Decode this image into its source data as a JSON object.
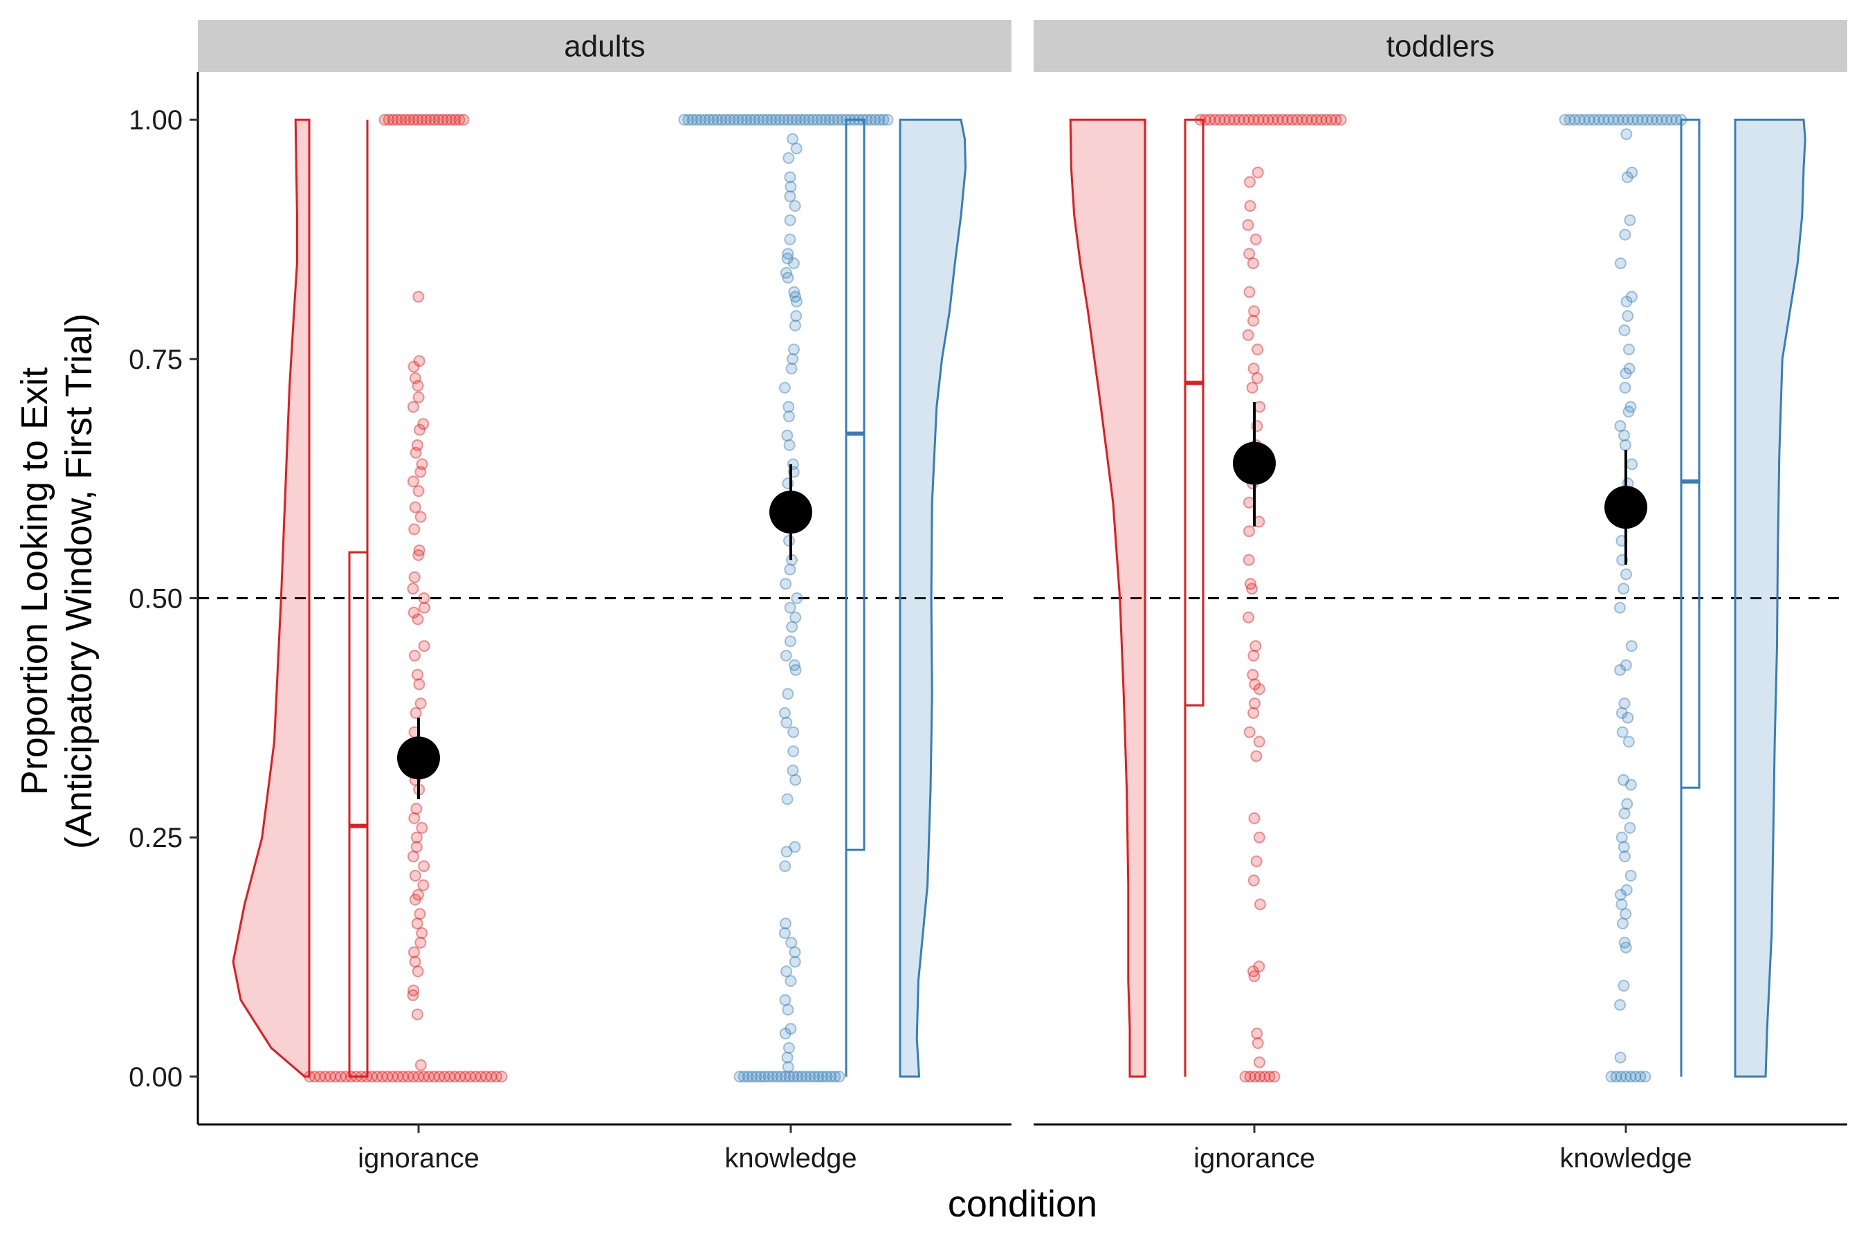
{
  "chart_data": {
    "type": "raincloud",
    "ylabel_line1": "Proportion Looking to Exit",
    "ylabel_line2": "(Anticipatory Window, First Trial)",
    "xlabel": "condition",
    "ylim": [
      -0.05,
      1.05
    ],
    "yticks": [
      0,
      0.25,
      0.5,
      0.75,
      1
    ],
    "ytick_labels": [
      "0.00",
      "0.25",
      "0.50",
      "0.75",
      "1.00"
    ],
    "reference_line": 0.5,
    "categories": [
      "ignorance",
      "knowledge"
    ],
    "colors": {
      "ignorance": "#e41a1c",
      "knowledge": "#377eb8",
      "summary": "#000000"
    },
    "panels": [
      {
        "name": "adults",
        "groups": [
          {
            "condition": "ignorance",
            "box": {
              "q1": 0.0,
              "median": 0.262,
              "q3": 0.548
            },
            "mean": 0.333,
            "ci": [
              0.29,
              0.375
            ],
            "density": [
              [
                0,
                0.06
              ],
              [
                0.03,
                0.5
              ],
              [
                0.08,
                0.9
              ],
              [
                0.12,
                1.0
              ],
              [
                0.18,
                0.85
              ],
              [
                0.25,
                0.62
              ],
              [
                0.35,
                0.46
              ],
              [
                0.5,
                0.37
              ],
              [
                0.6,
                0.32
              ],
              [
                0.72,
                0.26
              ],
              [
                0.8,
                0.2
              ],
              [
                0.85,
                0.16
              ],
              [
                0.9,
                0.16
              ],
              [
                0.95,
                0.17
              ],
              [
                1,
                0.18
              ]
            ],
            "points": [
              1,
              1,
              1,
              1,
              1,
              1,
              1,
              1,
              1,
              1,
              1,
              1,
              1,
              1,
              1,
              1,
              1,
              1,
              1,
              1,
              0.815,
              0.748,
              0.742,
              0.73,
              0.722,
              0.71,
              0.7,
              0.682,
              0.676,
              0.66,
              0.652,
              0.64,
              0.632,
              0.622,
              0.612,
              0.595,
              0.585,
              0.572,
              0.55,
              0.545,
              0.522,
              0.51,
              0.5,
              0.49,
              0.485,
              0.478,
              0.45,
              0.44,
              0.42,
              0.41,
              0.39,
              0.38,
              0.36,
              0.34,
              0.33,
              0.31,
              0.3,
              0.28,
              0.27,
              0.26,
              0.25,
              0.24,
              0.23,
              0.22,
              0.21,
              0.2,
              0.19,
              0.185,
              0.17,
              0.16,
              0.15,
              0.14,
              0.13,
              0.12,
              0.11,
              0.09,
              0.085,
              0.065,
              0.012,
              0,
              0,
              0,
              0,
              0,
              0,
              0,
              0,
              0,
              0,
              0,
              0,
              0,
              0,
              0,
              0,
              0,
              0,
              0,
              0,
              0,
              0,
              0,
              0,
              0,
              0,
              0,
              0,
              0,
              0,
              0,
              0,
              0,
              0,
              0,
              0,
              0,
              0
            ]
          },
          {
            "condition": "knowledge",
            "box": {
              "q1": 0.237,
              "median": 0.672,
              "q3": 1.0
            },
            "mean": 0.59,
            "ci": [
              0.54,
              0.64
            ],
            "density": [
              [
                0,
                0.25
              ],
              [
                0.04,
                0.22
              ],
              [
                0.1,
                0.24
              ],
              [
                0.15,
                0.3
              ],
              [
                0.2,
                0.36
              ],
              [
                0.3,
                0.4
              ],
              [
                0.4,
                0.42
              ],
              [
                0.5,
                0.41
              ],
              [
                0.6,
                0.42
              ],
              [
                0.7,
                0.48
              ],
              [
                0.75,
                0.55
              ],
              [
                0.8,
                0.65
              ],
              [
                0.85,
                0.72
              ],
              [
                0.9,
                0.8
              ],
              [
                0.95,
                0.86
              ],
              [
                0.98,
                0.85
              ],
              [
                1,
                0.8
              ]
            ],
            "points": [
              1,
              1,
              1,
              1,
              1,
              1,
              1,
              1,
              1,
              1,
              1,
              1,
              1,
              1,
              1,
              1,
              1,
              1,
              1,
              1,
              1,
              1,
              1,
              1,
              1,
              1,
              1,
              1,
              1,
              1,
              1,
              1,
              1,
              1,
              1,
              1,
              1,
              1,
              1,
              1,
              1,
              1,
              1,
              1,
              1,
              1,
              1,
              1,
              1,
              1,
              0.98,
              0.97,
              0.96,
              0.94,
              0.93,
              0.92,
              0.91,
              0.895,
              0.875,
              0.86,
              0.855,
              0.85,
              0.84,
              0.835,
              0.82,
              0.815,
              0.81,
              0.795,
              0.785,
              0.76,
              0.75,
              0.74,
              0.72,
              0.7,
              0.69,
              0.67,
              0.66,
              0.64,
              0.632,
              0.62,
              0.6,
              0.58,
              0.56,
              0.54,
              0.53,
              0.515,
              0.5,
              0.49,
              0.48,
              0.47,
              0.455,
              0.44,
              0.43,
              0.425,
              0.4,
              0.38,
              0.37,
              0.36,
              0.34,
              0.32,
              0.31,
              0.29,
              0.24,
              0.235,
              0.22,
              0.16,
              0.15,
              0.14,
              0.13,
              0.12,
              0.11,
              0.1,
              0.08,
              0.07,
              0.05,
              0.045,
              0.03,
              0.02,
              0.01,
              0,
              0,
              0,
              0,
              0,
              0,
              0,
              0,
              0,
              0,
              0,
              0,
              0,
              0,
              0,
              0,
              0,
              0,
              0,
              0,
              0,
              0,
              0,
              0,
              0
            ]
          }
        ]
      },
      {
        "name": "toddlers",
        "groups": [
          {
            "condition": "ignorance",
            "box": {
              "q1": 0.388,
              "median": 0.725,
              "q3": 1.0
            },
            "mean": 0.641,
            "ci": [
              0.575,
              0.705
            ],
            "density": [
              [
                0,
                0.2
              ],
              [
                0.05,
                0.2
              ],
              [
                0.1,
                0.22
              ],
              [
                0.2,
                0.22
              ],
              [
                0.3,
                0.24
              ],
              [
                0.4,
                0.28
              ],
              [
                0.5,
                0.33
              ],
              [
                0.6,
                0.42
              ],
              [
                0.7,
                0.58
              ],
              [
                0.8,
                0.75
              ],
              [
                0.85,
                0.85
              ],
              [
                0.9,
                0.93
              ],
              [
                0.95,
                0.97
              ],
              [
                1,
                0.98
              ]
            ],
            "points": [
              1,
              1,
              1,
              1,
              1,
              1,
              1,
              1,
              1,
              1,
              1,
              1,
              1,
              1,
              1,
              1,
              1,
              1,
              1,
              1,
              1,
              1,
              1,
              1,
              1,
              1,
              1,
              1,
              1,
              1,
              0.945,
              0.935,
              0.91,
              0.89,
              0.875,
              0.86,
              0.85,
              0.82,
              0.8,
              0.79,
              0.775,
              0.76,
              0.74,
              0.73,
              0.72,
              0.7,
              0.68,
              0.66,
              0.645,
              0.62,
              0.6,
              0.58,
              0.57,
              0.54,
              0.515,
              0.51,
              0.48,
              0.45,
              0.44,
              0.42,
              0.41,
              0.405,
              0.39,
              0.38,
              0.36,
              0.35,
              0.335,
              0.27,
              0.25,
              0.225,
              0.205,
              0.18,
              0.115,
              0.11,
              0.105,
              0.045,
              0.035,
              0.015,
              0,
              0,
              0,
              0,
              0,
              0,
              0
            ]
          },
          {
            "condition": "knowledge",
            "box": {
              "q1": 0.302,
              "median": 0.622,
              "q3": 1.0
            },
            "mean": 0.595,
            "ci": [
              0.535,
              0.655
            ],
            "density": [
              [
                0,
                0.4
              ],
              [
                0.05,
                0.42
              ],
              [
                0.15,
                0.48
              ],
              [
                0.25,
                0.5
              ],
              [
                0.35,
                0.52
              ],
              [
                0.45,
                0.55
              ],
              [
                0.55,
                0.56
              ],
              [
                0.65,
                0.58
              ],
              [
                0.75,
                0.62
              ],
              [
                0.8,
                0.72
              ],
              [
                0.85,
                0.82
              ],
              [
                0.9,
                0.88
              ],
              [
                0.95,
                0.9
              ],
              [
                0.98,
                0.92
              ],
              [
                1,
                0.9
              ]
            ],
            "points": [
              1,
              1,
              1,
              1,
              1,
              1,
              1,
              1,
              1,
              1,
              1,
              1,
              1,
              1,
              1,
              1,
              1,
              1,
              1,
              1,
              1,
              1,
              1,
              1,
              1,
              0.985,
              0.945,
              0.94,
              0.895,
              0.88,
              0.85,
              0.815,
              0.81,
              0.795,
              0.78,
              0.76,
              0.74,
              0.735,
              0.72,
              0.7,
              0.695,
              0.68,
              0.67,
              0.66,
              0.64,
              0.62,
              0.61,
              0.58,
              0.56,
              0.54,
              0.525,
              0.51,
              0.49,
              0.45,
              0.43,
              0.425,
              0.39,
              0.38,
              0.375,
              0.36,
              0.35,
              0.31,
              0.305,
              0.285,
              0.275,
              0.26,
              0.25,
              0.24,
              0.23,
              0.21,
              0.195,
              0.19,
              0.18,
              0.17,
              0.16,
              0.14,
              0.135,
              0.095,
              0.075,
              0.02,
              0,
              0,
              0,
              0,
              0,
              0,
              0,
              0
            ]
          }
        ]
      }
    ]
  }
}
